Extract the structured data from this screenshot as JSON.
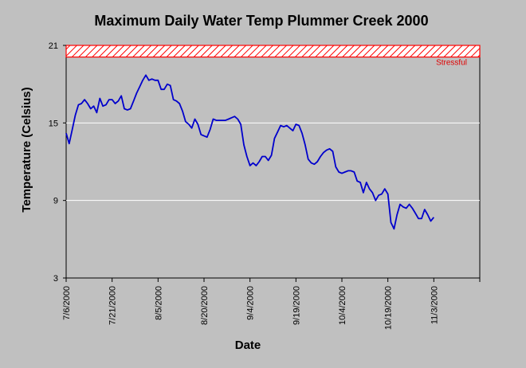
{
  "chart_data": {
    "type": "line",
    "title": "Maximum Daily Water Temp Plummer Creek 2000",
    "xlabel": "Date",
    "ylabel": "Temperature (Celsius)",
    "ylim": [
      3,
      21
    ],
    "yticks": [
      3,
      9,
      15,
      21
    ],
    "xlim": [
      "7/6/2000",
      "11/18/2000"
    ],
    "xticks": [
      "7/6/2000",
      "7/21/2000",
      "8/5/2000",
      "8/20/2000",
      "9/4/2000",
      "9/19/2000",
      "10/4/2000",
      "10/19/2000",
      "11/3/2000"
    ],
    "grid": "horizontal",
    "threshold_band": {
      "label": "Stressful",
      "from": 20.1,
      "to": 21,
      "color": "#ff0000"
    },
    "series": [
      {
        "color": "#0000cc",
        "points": [
          [
            "7/6/2000",
            14.2
          ],
          [
            "7/7/2000",
            13.4
          ],
          [
            "7/8/2000",
            14.5
          ],
          [
            "7/9/2000",
            15.6
          ],
          [
            "7/10/2000",
            16.4
          ],
          [
            "7/11/2000",
            16.5
          ],
          [
            "7/12/2000",
            16.8
          ],
          [
            "7/13/2000",
            16.5
          ],
          [
            "7/14/2000",
            16.1
          ],
          [
            "7/15/2000",
            16.3
          ],
          [
            "7/16/2000",
            15.8
          ],
          [
            "7/17/2000",
            16.9
          ],
          [
            "7/18/2000",
            16.3
          ],
          [
            "7/19/2000",
            16.4
          ],
          [
            "7/20/2000",
            16.8
          ],
          [
            "7/21/2000",
            16.8
          ],
          [
            "7/22/2000",
            16.5
          ],
          [
            "7/23/2000",
            16.7
          ],
          [
            "7/24/2000",
            17.1
          ],
          [
            "7/25/2000",
            16.1
          ],
          [
            "7/26/2000",
            16.0
          ],
          [
            "7/27/2000",
            16.1
          ],
          [
            "7/28/2000",
            16.7
          ],
          [
            "7/29/2000",
            17.3
          ],
          [
            "7/30/2000",
            17.8
          ],
          [
            "7/31/2000",
            18.3
          ],
          [
            "8/1/2000",
            18.7
          ],
          [
            "8/2/2000",
            18.3
          ],
          [
            "8/3/2000",
            18.4
          ],
          [
            "8/4/2000",
            18.3
          ],
          [
            "8/5/2000",
            18.3
          ],
          [
            "8/6/2000",
            17.6
          ],
          [
            "8/7/2000",
            17.6
          ],
          [
            "8/8/2000",
            18.0
          ],
          [
            "8/9/2000",
            17.9
          ],
          [
            "8/10/2000",
            16.8
          ],
          [
            "8/11/2000",
            16.7
          ],
          [
            "8/12/2000",
            16.5
          ],
          [
            "8/13/2000",
            15.9
          ],
          [
            "8/14/2000",
            15.1
          ],
          [
            "8/15/2000",
            14.9
          ],
          [
            "8/16/2000",
            14.6
          ],
          [
            "8/17/2000",
            15.3
          ],
          [
            "8/18/2000",
            14.9
          ],
          [
            "8/19/2000",
            14.1
          ],
          [
            "8/20/2000",
            14.0
          ],
          [
            "8/21/2000",
            13.9
          ],
          [
            "8/22/2000",
            14.5
          ],
          [
            "8/23/2000",
            15.3
          ],
          [
            "8/24/2000",
            15.2
          ],
          [
            "8/25/2000",
            15.2
          ],
          [
            "8/26/2000",
            15.2
          ],
          [
            "8/27/2000",
            15.2
          ],
          [
            "8/28/2000",
            15.3
          ],
          [
            "8/29/2000",
            15.4
          ],
          [
            "8/30/2000",
            15.5
          ],
          [
            "8/31/2000",
            15.3
          ],
          [
            "9/1/2000",
            14.9
          ],
          [
            "9/2/2000",
            13.3
          ],
          [
            "9/3/2000",
            12.4
          ],
          [
            "9/4/2000",
            11.7
          ],
          [
            "9/5/2000",
            11.9
          ],
          [
            "9/6/2000",
            11.7
          ],
          [
            "9/7/2000",
            12.0
          ],
          [
            "9/8/2000",
            12.4
          ],
          [
            "9/9/2000",
            12.4
          ],
          [
            "9/10/2000",
            12.1
          ],
          [
            "9/11/2000",
            12.5
          ],
          [
            "9/12/2000",
            13.8
          ],
          [
            "9/13/2000",
            14.3
          ],
          [
            "9/14/2000",
            14.8
          ],
          [
            "9/15/2000",
            14.7
          ],
          [
            "9/16/2000",
            14.8
          ],
          [
            "9/17/2000",
            14.6
          ],
          [
            "9/18/2000",
            14.4
          ],
          [
            "9/19/2000",
            14.9
          ],
          [
            "9/20/2000",
            14.8
          ],
          [
            "9/21/2000",
            14.2
          ],
          [
            "9/22/2000",
            13.3
          ],
          [
            "9/23/2000",
            12.2
          ],
          [
            "9/24/2000",
            11.9
          ],
          [
            "9/25/2000",
            11.8
          ],
          [
            "9/26/2000",
            12.0
          ],
          [
            "9/27/2000",
            12.4
          ],
          [
            "9/28/2000",
            12.7
          ],
          [
            "9/29/2000",
            12.9
          ],
          [
            "9/30/2000",
            13.0
          ],
          [
            "10/1/2000",
            12.8
          ],
          [
            "10/2/2000",
            11.6
          ],
          [
            "10/3/2000",
            11.2
          ],
          [
            "10/4/2000",
            11.1
          ],
          [
            "10/5/2000",
            11.2
          ],
          [
            "10/6/2000",
            11.3
          ],
          [
            "10/7/2000",
            11.3
          ],
          [
            "10/8/2000",
            11.2
          ],
          [
            "10/9/2000",
            10.5
          ],
          [
            "10/10/2000",
            10.4
          ],
          [
            "10/11/2000",
            9.6
          ],
          [
            "10/12/2000",
            10.4
          ],
          [
            "10/13/2000",
            9.9
          ],
          [
            "10/14/2000",
            9.6
          ],
          [
            "10/15/2000",
            9.0
          ],
          [
            "10/16/2000",
            9.4
          ],
          [
            "10/17/2000",
            9.5
          ],
          [
            "10/18/2000",
            9.9
          ],
          [
            "10/19/2000",
            9.5
          ],
          [
            "10/20/2000",
            7.3
          ],
          [
            "10/21/2000",
            6.8
          ],
          [
            "10/22/2000",
            7.9
          ],
          [
            "10/23/2000",
            8.7
          ],
          [
            "10/24/2000",
            8.5
          ],
          [
            "10/25/2000",
            8.4
          ],
          [
            "10/26/2000",
            8.7
          ],
          [
            "10/27/2000",
            8.4
          ],
          [
            "10/28/2000",
            8.0
          ],
          [
            "10/29/2000",
            7.6
          ],
          [
            "10/30/2000",
            7.6
          ],
          [
            "10/31/2000",
            8.3
          ],
          [
            "11/1/2000",
            7.9
          ],
          [
            "11/2/2000",
            7.4
          ],
          [
            "11/3/2000",
            7.7
          ]
        ]
      }
    ]
  }
}
